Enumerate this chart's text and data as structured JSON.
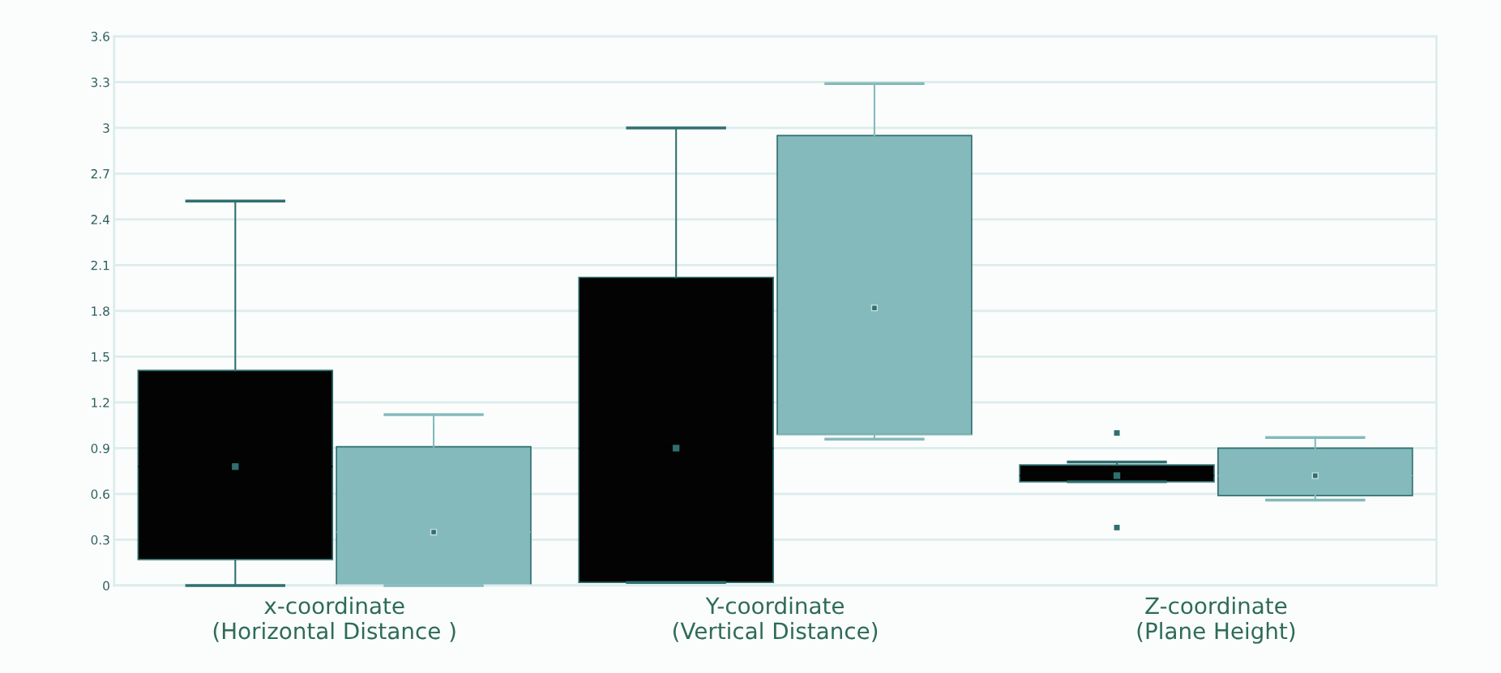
{
  "chart_data": {
    "type": "box",
    "categories": [
      "x-coordinate\n(Horizontal Distance )",
      "Y-coordinate\n(Vertical Distance)",
      "Z-coordinate\n(Plane Height)"
    ],
    "series": [
      {
        "color": "#030303",
        "boxes": [
          {
            "low": 0,
            "q1": 0.17,
            "median": 0.78,
            "q3": 1.41,
            "high": 2.52,
            "mean": 0.78
          },
          {
            "low": 0.02,
            "q1": 0.02,
            "median": 0.9,
            "q3": 2.02,
            "high": 3.0,
            "mean": 0.9
          },
          {
            "low": 0.68,
            "q1": 0.68,
            "median": 0.72,
            "q3": 0.79,
            "high": 0.81,
            "mean": 0.72,
            "outliers": [
              1.0,
              0.38
            ]
          }
        ]
      },
      {
        "color": "#84babc",
        "boxes": [
          {
            "low": 0,
            "q1": 0,
            "median": 0.35,
            "q3": 0.91,
            "high": 1.12,
            "mean": 0.35
          },
          {
            "low": 0.96,
            "q1": 0.99,
            "median": 0.99,
            "q3": 2.95,
            "high": 3.29,
            "mean": 1.82
          },
          {
            "low": 0.56,
            "q1": 0.59,
            "median": 0.72,
            "q3": 0.9,
            "high": 0.97,
            "mean": 0.72
          }
        ]
      }
    ],
    "ylim": [
      0,
      3.6
    ],
    "yticks": [
      0,
      0.3,
      0.6,
      0.9,
      1.2,
      1.5,
      1.8,
      2.1,
      2.4,
      2.7,
      3,
      3.3,
      3.6
    ],
    "grid": "y",
    "marker": "square"
  }
}
